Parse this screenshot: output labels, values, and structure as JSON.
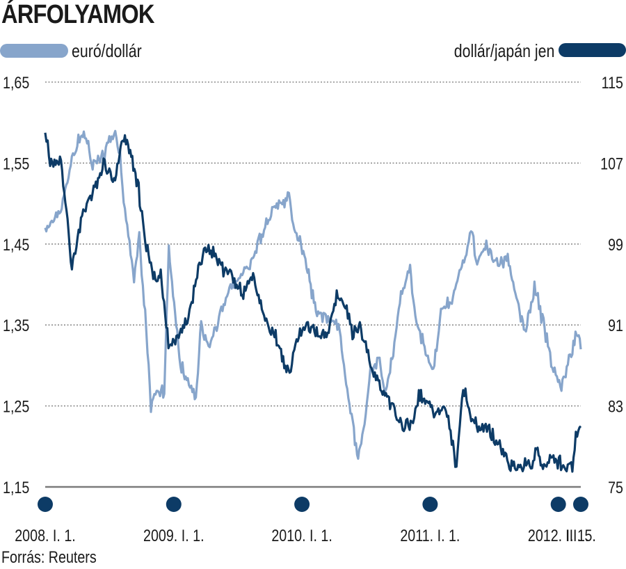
{
  "title": "ÁRFOLYAMOK",
  "source": "Forrás: Reuters",
  "colors": {
    "eur_usd": "#87a5cb",
    "usd_jpy": "#0d3b66",
    "grid": "#888888",
    "axis": "#666666"
  },
  "chart_data": {
    "type": "line",
    "title": "ÁRFOLYAMOK",
    "grid": true,
    "legend": "top",
    "x_ticks": [
      "2008. I. 1.",
      "2009. I. 1.",
      "2010. I. 1.",
      "2011. I. 1.",
      "2012. I. 1.",
      "III. 5."
    ],
    "x_tick_dates": [
      "2008-01-01",
      "2009-01-01",
      "2010-01-01",
      "2011-01-01",
      "2012-01-01",
      "2012-03-05"
    ],
    "x_range": [
      "2008-01-01",
      "2012-03-05"
    ],
    "left_axis": {
      "ticks": [
        "1,65",
        "1,55",
        "1,45",
        "1,35",
        "1,25",
        "1,15"
      ],
      "ylim": [
        1.15,
        1.65
      ]
    },
    "right_axis": {
      "ticks": [
        "115",
        "107",
        "99",
        "91",
        "83",
        "75"
      ],
      "ylim": [
        75,
        115
      ]
    },
    "series": [
      {
        "name": "euró/dollár",
        "axis": "left",
        "points": [
          [
            "2008-01-01",
            1.47
          ],
          [
            "2008-02-01",
            1.48
          ],
          [
            "2008-03-01",
            1.52
          ],
          [
            "2008-03-20",
            1.56
          ],
          [
            "2008-04-20",
            1.59
          ],
          [
            "2008-05-15",
            1.55
          ],
          [
            "2008-06-15",
            1.56
          ],
          [
            "2008-07-15",
            1.59
          ],
          [
            "2008-08-01",
            1.56
          ],
          [
            "2008-08-15",
            1.49
          ],
          [
            "2008-09-10",
            1.41
          ],
          [
            "2008-09-25",
            1.46
          ],
          [
            "2008-10-15",
            1.34
          ],
          [
            "2008-10-28",
            1.25
          ],
          [
            "2008-11-10",
            1.27
          ],
          [
            "2008-11-20",
            1.26
          ],
          [
            "2008-12-05",
            1.27
          ],
          [
            "2008-12-18",
            1.44
          ],
          [
            "2009-01-05",
            1.36
          ],
          [
            "2009-01-20",
            1.3
          ],
          [
            "2009-02-10",
            1.28
          ],
          [
            "2009-03-05",
            1.26
          ],
          [
            "2009-03-20",
            1.35
          ],
          [
            "2009-04-10",
            1.32
          ],
          [
            "2009-05-10",
            1.36
          ],
          [
            "2009-06-15",
            1.4
          ],
          [
            "2009-07-15",
            1.41
          ],
          [
            "2009-08-15",
            1.43
          ],
          [
            "2009-09-15",
            1.47
          ],
          [
            "2009-10-15",
            1.49
          ],
          [
            "2009-11-25",
            1.51
          ],
          [
            "2009-12-10",
            1.47
          ],
          [
            "2010-01-05",
            1.44
          ],
          [
            "2010-01-20",
            1.41
          ],
          [
            "2010-02-10",
            1.37
          ],
          [
            "2010-03-10",
            1.36
          ],
          [
            "2010-04-15",
            1.35
          ],
          [
            "2010-05-10",
            1.27
          ],
          [
            "2010-06-07",
            1.19
          ],
          [
            "2010-06-25",
            1.22
          ],
          [
            "2010-07-15",
            1.29
          ],
          [
            "2010-08-10",
            1.31
          ],
          [
            "2010-08-25",
            1.27
          ],
          [
            "2010-09-15",
            1.31
          ],
          [
            "2010-10-10",
            1.39
          ],
          [
            "2010-11-05",
            1.42
          ],
          [
            "2010-11-20",
            1.36
          ],
          [
            "2010-12-10",
            1.33
          ],
          [
            "2011-01-10",
            1.29
          ],
          [
            "2011-02-01",
            1.37
          ],
          [
            "2011-03-01",
            1.38
          ],
          [
            "2011-04-01",
            1.42
          ],
          [
            "2011-05-01",
            1.47
          ],
          [
            "2011-05-15",
            1.42
          ],
          [
            "2011-06-10",
            1.45
          ],
          [
            "2011-07-10",
            1.43
          ],
          [
            "2011-08-10",
            1.43
          ],
          [
            "2011-09-10",
            1.37
          ],
          [
            "2011-10-01",
            1.34
          ],
          [
            "2011-10-25",
            1.4
          ],
          [
            "2011-11-20",
            1.35
          ],
          [
            "2011-12-15",
            1.3
          ],
          [
            "2012-01-10",
            1.27
          ],
          [
            "2012-01-25",
            1.3
          ],
          [
            "2012-02-10",
            1.32
          ],
          [
            "2012-02-25",
            1.34
          ],
          [
            "2012-03-05",
            1.32
          ]
        ]
      },
      {
        "name": "dollár/japán jen",
        "axis": "right",
        "points": [
          [
            "2008-01-01",
            110
          ],
          [
            "2008-01-15",
            107
          ],
          [
            "2008-02-15",
            107
          ],
          [
            "2008-03-17",
            97
          ],
          [
            "2008-04-15",
            102
          ],
          [
            "2008-05-15",
            104
          ],
          [
            "2008-06-15",
            107
          ],
          [
            "2008-07-15",
            105
          ],
          [
            "2008-08-15",
            110
          ],
          [
            "2008-09-05",
            107
          ],
          [
            "2008-09-20",
            105
          ],
          [
            "2008-10-15",
            99
          ],
          [
            "2008-11-10",
            95
          ],
          [
            "2008-11-25",
            96
          ],
          [
            "2008-12-17",
            89
          ],
          [
            "2009-01-15",
            90
          ],
          [
            "2009-02-15",
            92
          ],
          [
            "2009-03-15",
            97
          ],
          [
            "2009-04-10",
            99
          ],
          [
            "2009-05-10",
            97
          ],
          [
            "2009-06-10",
            96
          ],
          [
            "2009-07-15",
            94
          ],
          [
            "2009-08-15",
            96
          ],
          [
            "2009-09-15",
            92
          ],
          [
            "2009-10-15",
            90
          ],
          [
            "2009-11-27",
            86
          ],
          [
            "2009-12-20",
            90
          ],
          [
            "2010-01-15",
            91
          ],
          [
            "2010-02-15",
            90
          ],
          [
            "2010-03-15",
            90
          ],
          [
            "2010-04-10",
            94
          ],
          [
            "2010-05-05",
            93
          ],
          [
            "2010-05-25",
            90
          ],
          [
            "2010-06-15",
            91
          ],
          [
            "2010-07-15",
            87
          ],
          [
            "2010-08-25",
            84
          ],
          [
            "2010-09-15",
            83
          ],
          [
            "2010-10-15",
            81
          ],
          [
            "2010-11-10",
            81
          ],
          [
            "2010-11-30",
            84
          ],
          [
            "2010-12-15",
            84
          ],
          [
            "2011-01-15",
            82
          ],
          [
            "2011-02-15",
            83
          ],
          [
            "2011-03-17",
            77
          ],
          [
            "2011-04-05",
            85
          ],
          [
            "2011-04-25",
            82
          ],
          [
            "2011-05-20",
            81
          ],
          [
            "2011-06-15",
            81
          ],
          [
            "2011-07-15",
            79
          ],
          [
            "2011-08-15",
            77
          ],
          [
            "2011-09-15",
            77
          ],
          [
            "2011-10-15",
            77
          ],
          [
            "2011-10-31",
            79
          ],
          [
            "2011-11-15",
            77
          ],
          [
            "2011-12-15",
            78
          ],
          [
            "2012-01-15",
            77
          ],
          [
            "2012-02-10",
            77
          ],
          [
            "2012-02-20",
            80
          ],
          [
            "2012-03-05",
            81
          ]
        ]
      }
    ]
  }
}
